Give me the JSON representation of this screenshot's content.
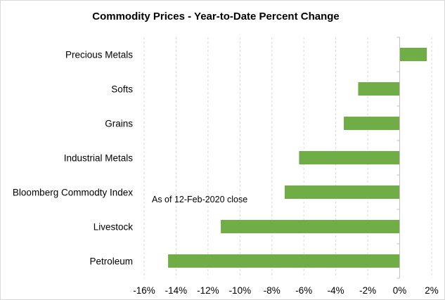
{
  "chart_data": {
    "type": "bar",
    "orientation": "horizontal",
    "title": "Commodity Prices - Year-to-Date Percent Change",
    "annotation": "As of 12-Feb-2020 close",
    "categories": [
      "Precious Metals",
      "Softs",
      "Grains",
      "Industrial Metals",
      "Bloomberg Commodty Index",
      "Livestock",
      "Petroleum"
    ],
    "values": [
      1.7,
      -2.6,
      -3.5,
      -6.3,
      -7.2,
      -11.2,
      -14.5
    ],
    "xlim": [
      -16,
      2
    ],
    "xticks": [
      "-16%",
      "-14%",
      "-12%",
      "-10%",
      "-8%",
      "-6%",
      "-4%",
      "-2%",
      "0%",
      "2%"
    ],
    "xtick_values": [
      -16,
      -14,
      -12,
      -10,
      -8,
      -6,
      -4,
      -2,
      0,
      2
    ],
    "grid": "vertical dashed",
    "bar_color": "#70ad47"
  }
}
